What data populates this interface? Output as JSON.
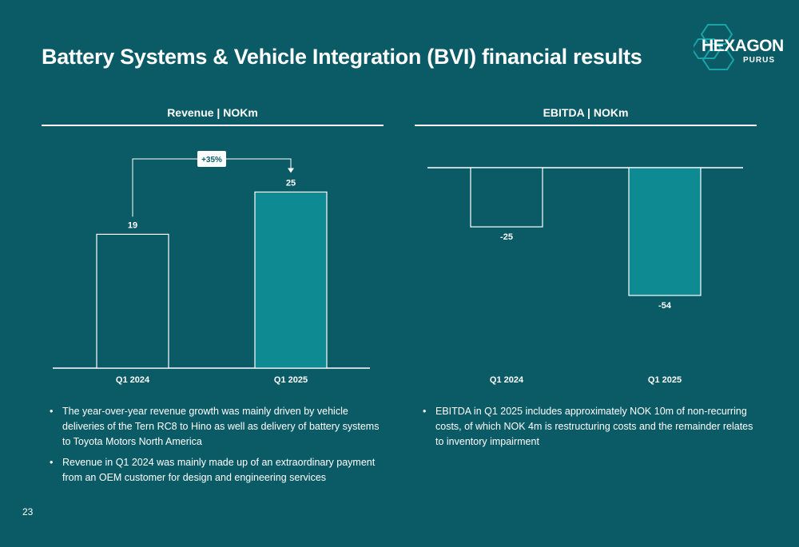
{
  "slide": {
    "title": "Battery Systems & Vehicle Integration (BVI) financial results",
    "page_number": "23"
  },
  "logo": {
    "main": "HEXAGON",
    "sub": "PURUS"
  },
  "colors": {
    "background": "#0b5b66",
    "bar_prior": "#0b5b66",
    "bar_current": "#0e8b92",
    "text": "#ffffff"
  },
  "chart_data": [
    {
      "type": "bar",
      "title": "Revenue | NOKm",
      "categories": [
        "Q1 2024",
        "Q1 2025"
      ],
      "values": [
        19,
        25
      ],
      "value_labels": [
        "19",
        "25"
      ],
      "ylim": [
        0,
        28
      ],
      "annotation": "+35%",
      "xlabel": "",
      "ylabel": ""
    },
    {
      "type": "bar",
      "title": "EBITDA | NOKm",
      "categories": [
        "Q1 2024",
        "Q1 2025"
      ],
      "values": [
        -25,
        -54
      ],
      "value_labels": [
        "-25",
        "-54"
      ],
      "ylim": [
        -54,
        0
      ],
      "xlabel": "",
      "ylabel": ""
    }
  ],
  "revenue_notes": [
    "The year-over-year revenue growth was mainly driven by vehicle deliveries of the Tern RC8 to Hino as well as delivery of battery systems to Toyota Motors North America",
    "Revenue in Q1 2024 was mainly made up of an extraordinary payment from an OEM customer for design and engineering services"
  ],
  "ebitda_notes": [
    "EBITDA in Q1 2025 includes approximately NOK 10m of non-recurring costs, of which NOK 4m is restructuring costs and the remainder relates to inventory impairment"
  ],
  "bullet_char": "•"
}
